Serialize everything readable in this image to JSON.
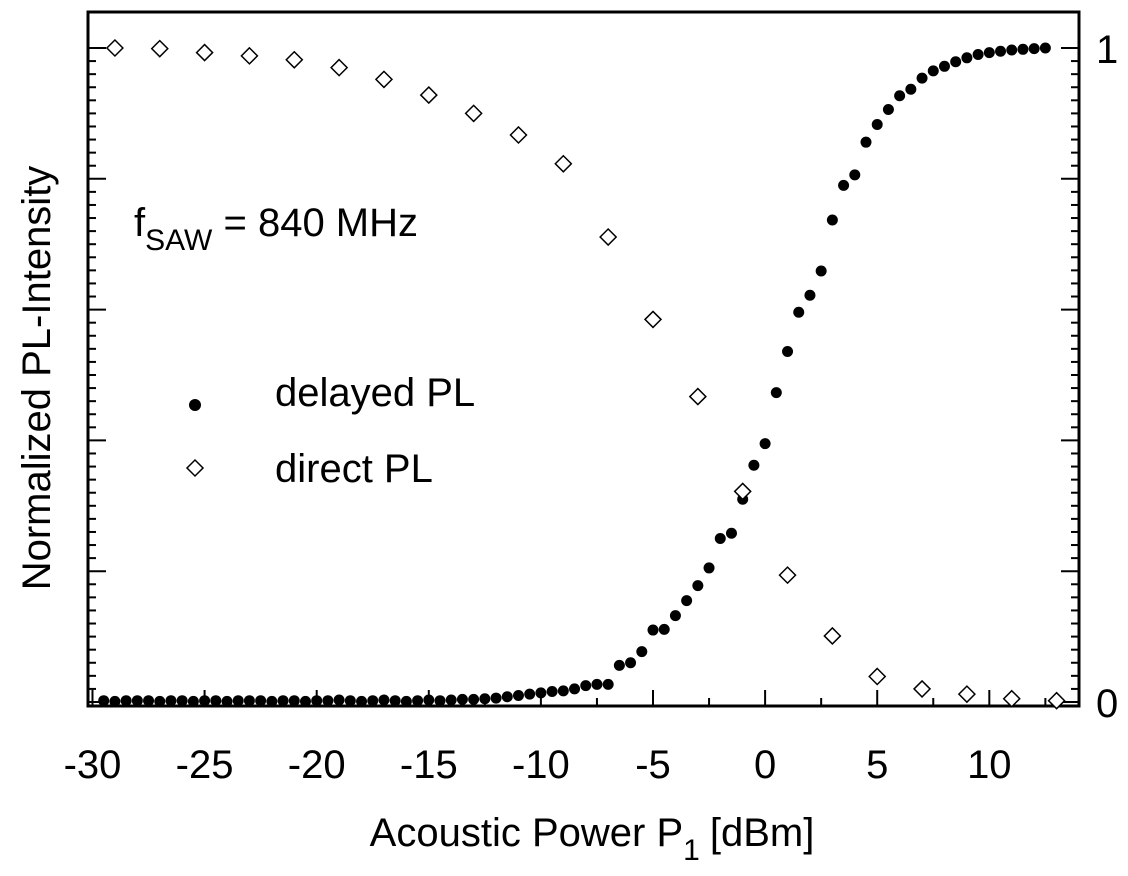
{
  "chart_data": {
    "type": "scatter",
    "xlabel": "Acoustic Power P",
    "xlabel_sub": "1",
    "xlabel_unit": "[dBm]",
    "ylabel": "Normalized PL-Intensity",
    "xlim": [
      -30.2,
      14
    ],
    "ylim": [
      0,
      1
    ],
    "x_ticks": [
      -30,
      -25,
      -20,
      -15,
      -10,
      -5,
      0,
      5,
      10
    ],
    "x_tick_labels": [
      "-30",
      "-25",
      "-20",
      "-15",
      "-10",
      "-5",
      "0",
      "5",
      "10"
    ],
    "y_right_ticks": [
      0,
      1
    ],
    "y_right_tick_labels": [
      "0",
      "1"
    ],
    "annotation": {
      "main": "f",
      "sub": "SAW",
      "rest": " = 840 MHz"
    },
    "legend": [
      {
        "label": "delayed PL",
        "marker": "filled-circle"
      },
      {
        "label": "direct PL",
        "marker": "open-diamond"
      }
    ],
    "series": [
      {
        "name": "delayed PL",
        "marker": "filled-circle",
        "x": [
          -29.5,
          -29,
          -28.5,
          -28,
          -27.5,
          -27,
          -26.5,
          -26,
          -25.5,
          -25,
          -24.5,
          -24,
          -23.5,
          -23,
          -22.5,
          -22,
          -21.5,
          -21,
          -20.5,
          -20,
          -19.5,
          -19,
          -18.5,
          -18,
          -17.5,
          -17,
          -16.5,
          -16,
          -15.5,
          -15,
          -14.5,
          -14,
          -13.5,
          -13,
          -12.5,
          -12,
          -11.5,
          -11,
          -10.5,
          -10,
          -9.5,
          -9,
          -8.5,
          -8,
          -7.5,
          -7,
          -6.5,
          -6,
          -5.5,
          -5,
          -4.5,
          -4,
          -3.5,
          -3,
          -2.5,
          -2,
          -1.5,
          -1,
          -0.5,
          0,
          0.5,
          1,
          1.5,
          2,
          2.5,
          3,
          3.5,
          4,
          4.5,
          5,
          5.5,
          6,
          6.5,
          7,
          7.5,
          8,
          8.5,
          9,
          9.5,
          10,
          10.5,
          11,
          11.5,
          12,
          12.5
        ],
        "y": [
          0.002,
          0.001,
          0.002,
          0.002,
          0.002,
          0.001,
          0.002,
          0.002,
          0.001,
          0.002,
          0.002,
          0.001,
          0.002,
          0.002,
          0.002,
          0.001,
          0.002,
          0.002,
          0.001,
          0.002,
          0.002,
          0.003,
          0.002,
          0.001,
          0.002,
          0.003,
          0.002,
          0.001,
          0.002,
          0.003,
          0.002,
          0.003,
          0.004,
          0.004,
          0.005,
          0.006,
          0.008,
          0.01,
          0.012,
          0.014,
          0.016,
          0.017,
          0.02,
          0.025,
          0.027,
          0.027,
          0.056,
          0.06,
          0.077,
          0.11,
          0.111,
          0.132,
          0.155,
          0.178,
          0.205,
          0.25,
          0.258,
          0.31,
          0.362,
          0.395,
          0.473,
          0.536,
          0.596,
          0.622,
          0.659,
          0.737,
          0.79,
          0.806,
          0.856,
          0.883,
          0.906,
          0.927,
          0.937,
          0.954,
          0.965,
          0.972,
          0.979,
          0.985,
          0.99,
          0.993,
          0.995,
          0.997,
          0.998,
          0.999,
          1.0
        ]
      },
      {
        "name": "direct PL",
        "marker": "open-diamond",
        "x": [
          -29,
          -27,
          -25,
          -23,
          -21,
          -19,
          -17,
          -15,
          -13,
          -11,
          -9,
          -7,
          -5,
          -3,
          -1,
          1,
          3,
          5,
          7,
          9,
          11,
          13
        ],
        "y": [
          1.0,
          0.999,
          0.993,
          0.988,
          0.982,
          0.97,
          0.952,
          0.928,
          0.9,
          0.867,
          0.823,
          0.711,
          0.585,
          0.467,
          0.322,
          0.194,
          0.101,
          0.039,
          0.02,
          0.012,
          0.005,
          0.002
        ]
      }
    ]
  }
}
